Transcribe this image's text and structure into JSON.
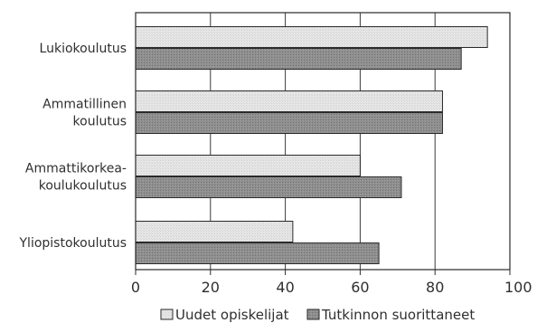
{
  "chart_data": {
    "type": "bar",
    "orientation": "horizontal",
    "categories": [
      [
        "Lukiokoulutus"
      ],
      [
        "Ammatillinen",
        "koulutus"
      ],
      [
        "Ammattikorkea-",
        "koulukoulutus"
      ],
      [
        "Yliopistokoulutus"
      ]
    ],
    "series": [
      {
        "name": "Uudet opiskelijat",
        "values": [
          94,
          82,
          60,
          42
        ],
        "color": "#e2e2e2"
      },
      {
        "name": "Tutkinnon suorittaneet",
        "values": [
          87,
          82,
          71,
          65
        ],
        "color": "#8c8c8c"
      }
    ],
    "xticks": [
      "0",
      "20",
      "40",
      "60",
      "80",
      "100 %"
    ],
    "xlim": [
      0,
      100
    ],
    "grid": "vertical",
    "legend": "bottom",
    "title": "",
    "xlabel": "",
    "ylabel": ""
  }
}
